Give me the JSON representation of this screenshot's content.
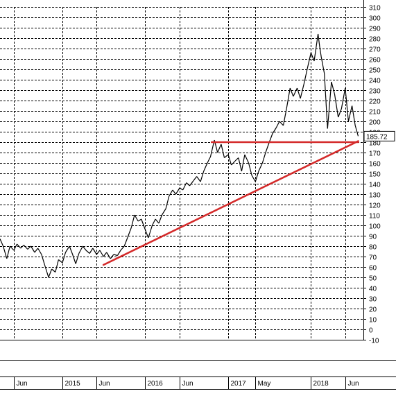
{
  "chart_data": {
    "type": "line",
    "title": "",
    "xlabel": "",
    "ylabel": "",
    "ylim": [
      -10,
      310
    ],
    "yticks": [
      -10,
      0,
      10,
      20,
      30,
      40,
      50,
      60,
      70,
      80,
      90,
      100,
      110,
      120,
      130,
      140,
      150,
      160,
      170,
      180,
      190,
      200,
      210,
      220,
      230,
      240,
      250,
      260,
      270,
      280,
      290,
      300,
      310
    ],
    "xlim": [
      "2014-04-01",
      "2018-08-20"
    ],
    "xticks": [
      {
        "date": "2014-06-01",
        "label": "Jun"
      },
      {
        "date": "2015-01-01",
        "label": "2015"
      },
      {
        "date": "2015-06-01",
        "label": "Jun"
      },
      {
        "date": "2016-01-01",
        "label": "2016"
      },
      {
        "date": "2016-06-01",
        "label": "Jun"
      },
      {
        "date": "2017-01-01",
        "label": "2017"
      },
      {
        "date": "2017-05-01",
        "label": "May"
      },
      {
        "date": "2018-01-01",
        "label": "2018"
      },
      {
        "date": "2018-06-01",
        "label": "Jun"
      }
    ],
    "grid": true,
    "last_value": "185.72",
    "line_color": "#000000",
    "trendline_color": "#d42a2a",
    "series": [
      {
        "values": [
          {
            "x": "2014-04-01",
            "y": 87
          },
          {
            "x": "2014-04-15",
            "y": 80
          },
          {
            "x": "2014-05-01",
            "y": 68
          },
          {
            "x": "2014-05-15",
            "y": 80
          },
          {
            "x": "2014-06-01",
            "y": 76
          },
          {
            "x": "2014-06-15",
            "y": 82
          },
          {
            "x": "2014-07-01",
            "y": 78
          },
          {
            "x": "2014-07-15",
            "y": 81
          },
          {
            "x": "2014-08-01",
            "y": 77
          },
          {
            "x": "2014-08-15",
            "y": 80
          },
          {
            "x": "2014-09-01",
            "y": 74
          },
          {
            "x": "2014-09-15",
            "y": 78
          },
          {
            "x": "2014-10-01",
            "y": 72
          },
          {
            "x": "2014-10-15",
            "y": 62
          },
          {
            "x": "2014-11-01",
            "y": 50
          },
          {
            "x": "2014-11-15",
            "y": 58
          },
          {
            "x": "2014-12-01",
            "y": 55
          },
          {
            "x": "2014-12-15",
            "y": 67
          },
          {
            "x": "2015-01-01",
            "y": 64
          },
          {
            "x": "2015-01-15",
            "y": 74
          },
          {
            "x": "2015-02-01",
            "y": 80
          },
          {
            "x": "2015-02-15",
            "y": 72
          },
          {
            "x": "2015-03-01",
            "y": 63
          },
          {
            "x": "2015-03-15",
            "y": 73
          },
          {
            "x": "2015-04-01",
            "y": 80
          },
          {
            "x": "2015-04-15",
            "y": 76
          },
          {
            "x": "2015-05-01",
            "y": 73
          },
          {
            "x": "2015-05-15",
            "y": 78
          },
          {
            "x": "2015-06-01",
            "y": 72
          },
          {
            "x": "2015-06-15",
            "y": 76
          },
          {
            "x": "2015-07-01",
            "y": 70
          },
          {
            "x": "2015-07-15",
            "y": 74
          },
          {
            "x": "2015-08-01",
            "y": 68
          },
          {
            "x": "2015-08-15",
            "y": 72
          },
          {
            "x": "2015-09-01",
            "y": 71
          },
          {
            "x": "2015-09-15",
            "y": 76
          },
          {
            "x": "2015-10-01",
            "y": 80
          },
          {
            "x": "2015-10-15",
            "y": 88
          },
          {
            "x": "2015-11-01",
            "y": 98
          },
          {
            "x": "2015-11-15",
            "y": 110
          },
          {
            "x": "2015-12-01",
            "y": 104
          },
          {
            "x": "2015-12-15",
            "y": 106
          },
          {
            "x": "2016-01-01",
            "y": 96
          },
          {
            "x": "2016-01-15",
            "y": 88
          },
          {
            "x": "2016-02-01",
            "y": 100
          },
          {
            "x": "2016-02-15",
            "y": 106
          },
          {
            "x": "2016-03-01",
            "y": 102
          },
          {
            "x": "2016-03-15",
            "y": 110
          },
          {
            "x": "2016-04-01",
            "y": 116
          },
          {
            "x": "2016-04-15",
            "y": 128
          },
          {
            "x": "2016-05-01",
            "y": 134
          },
          {
            "x": "2016-05-15",
            "y": 130
          },
          {
            "x": "2016-06-01",
            "y": 136
          },
          {
            "x": "2016-06-15",
            "y": 134
          },
          {
            "x": "2016-07-01",
            "y": 141
          },
          {
            "x": "2016-07-15",
            "y": 138
          },
          {
            "x": "2016-08-01",
            "y": 143
          },
          {
            "x": "2016-08-15",
            "y": 147
          },
          {
            "x": "2016-09-01",
            "y": 142
          },
          {
            "x": "2016-09-15",
            "y": 152
          },
          {
            "x": "2016-10-01",
            "y": 160
          },
          {
            "x": "2016-10-15",
            "y": 166
          },
          {
            "x": "2016-11-01",
            "y": 182
          },
          {
            "x": "2016-11-15",
            "y": 170
          },
          {
            "x": "2016-12-01",
            "y": 178
          },
          {
            "x": "2016-12-15",
            "y": 165
          },
          {
            "x": "2017-01-01",
            "y": 168
          },
          {
            "x": "2017-01-15",
            "y": 158
          },
          {
            "x": "2017-02-01",
            "y": 162
          },
          {
            "x": "2017-02-15",
            "y": 165
          },
          {
            "x": "2017-03-01",
            "y": 152
          },
          {
            "x": "2017-03-15",
            "y": 168
          },
          {
            "x": "2017-04-01",
            "y": 160
          },
          {
            "x": "2017-04-15",
            "y": 148
          },
          {
            "x": "2017-05-01",
            "y": 142
          },
          {
            "x": "2017-05-15",
            "y": 152
          },
          {
            "x": "2017-06-01",
            "y": 160
          },
          {
            "x": "2017-06-15",
            "y": 170
          },
          {
            "x": "2017-07-01",
            "y": 180
          },
          {
            "x": "2017-07-15",
            "y": 188
          },
          {
            "x": "2017-08-01",
            "y": 194
          },
          {
            "x": "2017-08-15",
            "y": 200
          },
          {
            "x": "2017-09-01",
            "y": 196
          },
          {
            "x": "2017-09-15",
            "y": 212
          },
          {
            "x": "2017-10-01",
            "y": 232
          },
          {
            "x": "2017-10-15",
            "y": 224
          },
          {
            "x": "2017-11-01",
            "y": 232
          },
          {
            "x": "2017-11-15",
            "y": 222
          },
          {
            "x": "2017-12-01",
            "y": 236
          },
          {
            "x": "2017-12-15",
            "y": 250
          },
          {
            "x": "2018-01-01",
            "y": 266
          },
          {
            "x": "2018-01-15",
            "y": 258
          },
          {
            "x": "2018-02-01",
            "y": 284
          },
          {
            "x": "2018-02-08",
            "y": 272
          },
          {
            "x": "2018-02-15",
            "y": 262
          },
          {
            "x": "2018-03-01",
            "y": 246
          },
          {
            "x": "2018-03-15",
            "y": 193
          },
          {
            "x": "2018-04-01",
            "y": 238
          },
          {
            "x": "2018-04-15",
            "y": 226
          },
          {
            "x": "2018-05-01",
            "y": 204
          },
          {
            "x": "2018-05-15",
            "y": 212
          },
          {
            "x": "2018-06-01",
            "y": 232
          },
          {
            "x": "2018-06-15",
            "y": 200
          },
          {
            "x": "2018-07-01",
            "y": 215
          },
          {
            "x": "2018-07-15",
            "y": 196
          },
          {
            "x": "2018-07-28",
            "y": 185.72
          }
        ]
      }
    ],
    "trendlines": [
      {
        "kind": "resistance",
        "points": [
          {
            "x": "2016-10-20",
            "y": 180
          },
          {
            "x": "2018-07-28",
            "y": 180
          }
        ]
      },
      {
        "kind": "support",
        "points": [
          {
            "x": "2015-07-01",
            "y": 62
          },
          {
            "x": "2018-07-28",
            "y": 181
          }
        ]
      }
    ]
  }
}
